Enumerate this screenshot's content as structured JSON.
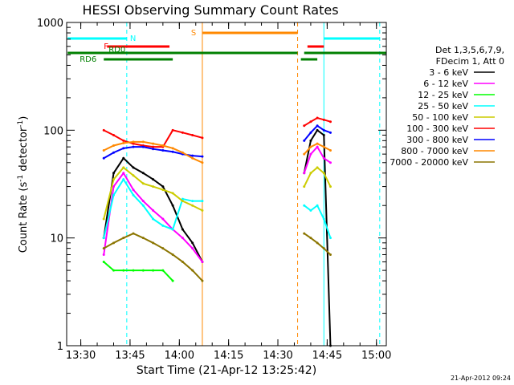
{
  "chart_data": {
    "type": "line",
    "title": "HESSI Observing Summary Count Rates",
    "xlabel": "Start Time (21-Apr-12 13:25:42)",
    "ylabel_main": "Count Rate (s",
    "ylabel_sup1": "-1",
    "ylabel_mid": " detector",
    "ylabel_sup2": "-1",
    "ylabel_end": ")",
    "yscale": "log",
    "ylim": [
      1,
      1000
    ],
    "xlim_minutes": [
      "13:25:42",
      "15:03:00"
    ],
    "x_ticks": [
      "13:30",
      "13:45",
      "14:00",
      "14:15",
      "14:30",
      "14:45",
      "15:00"
    ],
    "y_ticks": [
      "1",
      "10",
      "100",
      "1000"
    ],
    "timestamp": "21-Apr-2012 09:24",
    "legend_header": [
      "Det 1,3,5,6,7,9,",
      "FDecim 1, Att 0"
    ],
    "series": [
      {
        "name": "3 - 6 keV",
        "color": "#000000",
        "x": [
          "13:37",
          "13:40",
          "13:43",
          "13:46",
          "13:49",
          "13:52",
          "13:55",
          "13:58",
          "14:01",
          "14:04",
          "14:07",
          "14:38",
          "14:40",
          "14:42",
          "14:44",
          "14:46"
        ],
        "values": [
          10,
          40,
          55,
          45,
          40,
          35,
          30,
          20,
          12,
          9,
          6,
          40,
          80,
          100,
          90,
          1
        ]
      },
      {
        "name": "6 - 12 keV",
        "color": "#ff00ff",
        "x": [
          "13:37",
          "13:40",
          "13:43",
          "13:46",
          "13:49",
          "13:52",
          "13:55",
          "13:58",
          "14:01",
          "14:04",
          "14:07",
          "14:38",
          "14:40",
          "14:42",
          "14:44",
          "14:46"
        ],
        "values": [
          7,
          30,
          40,
          28,
          22,
          18,
          15,
          12,
          10,
          8,
          6,
          40,
          60,
          70,
          55,
          50
        ]
      },
      {
        "name": "12 - 25 keV",
        "color": "#00ff00",
        "x": [
          "13:37",
          "13:40",
          "13:43",
          "13:46",
          "13:49",
          "13:52",
          "13:55",
          "13:58"
        ],
        "values": [
          6,
          5,
          5,
          5,
          5,
          5,
          5,
          4
        ]
      },
      {
        "name": "25 - 50 keV",
        "color": "#00ffff",
        "x": [
          "13:37",
          "13:40",
          "13:43",
          "13:46",
          "13:49",
          "13:52",
          "13:55",
          "13:58",
          "14:01",
          "14:04",
          "14:07",
          "14:38",
          "14:40",
          "14:42",
          "14:44",
          "14:46"
        ],
        "values": [
          10,
          25,
          35,
          25,
          20,
          15,
          13,
          12,
          23,
          22,
          22,
          20,
          18,
          20,
          15,
          10
        ]
      },
      {
        "name": "50 - 100 keV",
        "color": "#cccc00",
        "x": [
          "13:37",
          "13:40",
          "13:43",
          "13:46",
          "13:49",
          "13:52",
          "13:55",
          "13:58",
          "14:01",
          "14:04",
          "14:07",
          "14:38",
          "14:40",
          "14:42",
          "14:44",
          "14:46"
        ],
        "values": [
          15,
          35,
          45,
          38,
          32,
          30,
          28,
          26,
          22,
          20,
          18,
          30,
          40,
          45,
          40,
          30
        ]
      },
      {
        "name": "100 - 300 keV",
        "color": "#ff0000",
        "x": [
          "13:37",
          "13:40",
          "13:43",
          "13:46",
          "13:49",
          "13:52",
          "13:55",
          "13:58",
          "14:01",
          "14:04",
          "14:07",
          "14:38",
          "14:40",
          "14:42",
          "14:44",
          "14:46"
        ],
        "values": [
          100,
          90,
          80,
          75,
          72,
          70,
          70,
          100,
          95,
          90,
          85,
          110,
          120,
          130,
          125,
          120
        ]
      },
      {
        "name": "300 - 800 keV",
        "color": "#0000ff",
        "x": [
          "13:37",
          "13:40",
          "13:43",
          "13:46",
          "13:49",
          "13:52",
          "13:55",
          "13:58",
          "14:01",
          "14:04",
          "14:07",
          "14:38",
          "14:40",
          "14:42",
          "14:44",
          "14:46"
        ],
        "values": [
          55,
          62,
          68,
          70,
          70,
          67,
          65,
          63,
          60,
          58,
          57,
          80,
          95,
          110,
          100,
          95
        ]
      },
      {
        "name": "800 - 7000 keV",
        "color": "#ff8800",
        "x": [
          "13:37",
          "13:40",
          "13:43",
          "13:46",
          "13:49",
          "13:52",
          "13:55",
          "13:58",
          "14:01",
          "14:04",
          "14:07",
          "14:38",
          "14:40",
          "14:42",
          "14:44",
          "14:46"
        ],
        "values": [
          65,
          72,
          76,
          78,
          78,
          75,
          72,
          68,
          62,
          55,
          50,
          60,
          70,
          75,
          70,
          65
        ]
      },
      {
        "name": "7000 - 20000 keV",
        "color": "#8b7500",
        "x": [
          "13:37",
          "13:40",
          "13:43",
          "13:46",
          "13:49",
          "13:52",
          "13:55",
          "13:58",
          "14:01",
          "14:04",
          "14:07",
          "14:38",
          "14:40",
          "14:42",
          "14:44",
          "14:46"
        ],
        "values": [
          8,
          9,
          10,
          11,
          10,
          9,
          8,
          7,
          6,
          5,
          4,
          11,
          10,
          9,
          8,
          7
        ]
      }
    ],
    "flag_bars": [
      {
        "label": "N",
        "color": "#00ffff",
        "x": [
          "13:26",
          "13:44"
        ],
        "level": "N"
      },
      {
        "label": "",
        "color": "#00ffff",
        "x": [
          "14:44",
          "15:01"
        ],
        "level": "N"
      },
      {
        "label": "F",
        "color": "#ff0000",
        "x": [
          "13:38",
          "13:57"
        ],
        "level": "F"
      },
      {
        "label": "",
        "color": "#ff0000",
        "x": [
          "14:39",
          "14:44"
        ],
        "level": "F"
      },
      {
        "label": "S",
        "color": "#ff8800",
        "x": [
          "14:07",
          "14:36"
        ],
        "level": "S"
      },
      {
        "label": "RD0",
        "color": "#008000",
        "x": [
          "13:26",
          "14:36"
        ],
        "level": "RD0"
      },
      {
        "label": "",
        "color": "#008000",
        "x": [
          "14:38",
          "15:03"
        ],
        "level": "RD0"
      },
      {
        "label": "RD6",
        "color": "#008000",
        "x": [
          "13:37",
          "13:58"
        ],
        "level": "RD6"
      },
      {
        "label": "",
        "color": "#008000",
        "x": [
          "14:37",
          "14:42"
        ],
        "level": "RD6"
      }
    ],
    "vertical_lines": [
      {
        "x": "13:44",
        "color": "#00ffff",
        "style": "dashed"
      },
      {
        "x": "14:07",
        "color": "#ff8800",
        "style": "solid"
      },
      {
        "x": "14:36",
        "color": "#ff8800",
        "style": "dashed"
      },
      {
        "x": "14:44",
        "color": "#00ffff",
        "style": "solid"
      },
      {
        "x": "15:01",
        "color": "#00ffff",
        "style": "dashed"
      }
    ]
  }
}
